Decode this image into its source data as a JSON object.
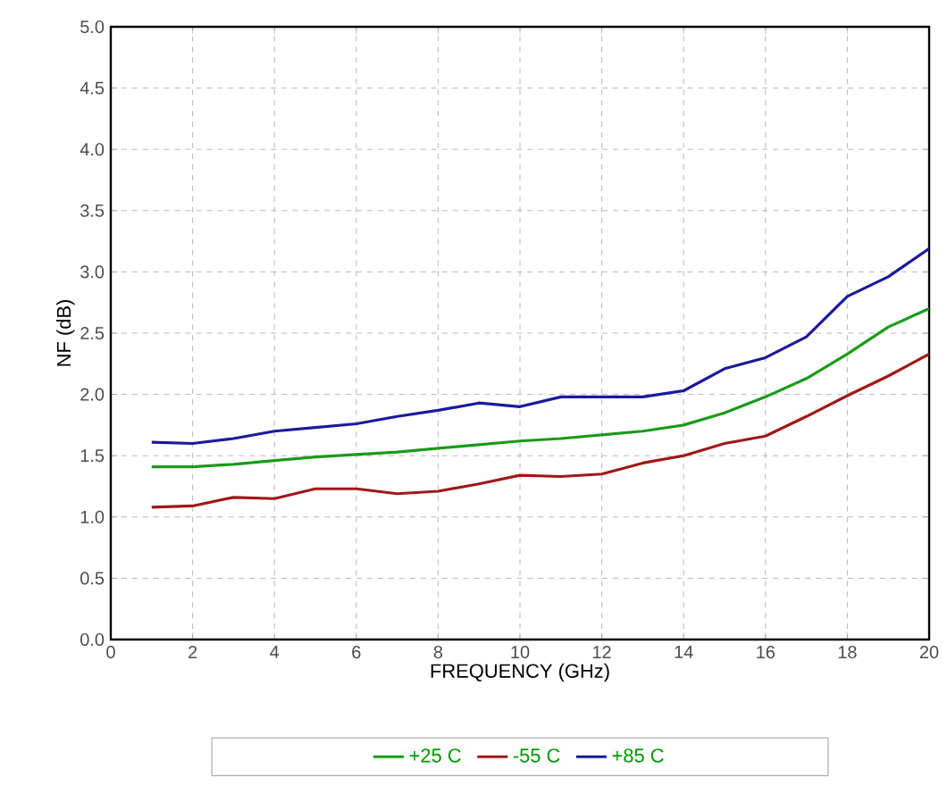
{
  "chart_data": {
    "type": "line",
    "xlabel": "FREQUENCY (GHz)",
    "ylabel": "NF (dB)",
    "x": [
      1,
      2,
      3,
      4,
      5,
      6,
      7,
      8,
      9,
      10,
      11,
      12,
      13,
      14,
      15,
      16,
      17,
      18,
      19,
      20
    ],
    "series": [
      {
        "name": "+25 C",
        "color": "#1a9a1a",
        "values": [
          1.41,
          1.41,
          1.43,
          1.46,
          1.49,
          1.51,
          1.53,
          1.56,
          1.59,
          1.62,
          1.64,
          1.67,
          1.7,
          1.75,
          1.85,
          1.98,
          2.13,
          2.33,
          2.55,
          2.7
        ]
      },
      {
        "name": "-55 C",
        "color": "#a01818",
        "values": [
          1.08,
          1.09,
          1.16,
          1.15,
          1.23,
          1.23,
          1.19,
          1.21,
          1.27,
          1.34,
          1.33,
          1.35,
          1.44,
          1.5,
          1.6,
          1.66,
          1.82,
          1.99,
          2.15,
          2.33
        ]
      },
      {
        "name": "+85 C",
        "color": "#1a1a9a",
        "values": [
          1.61,
          1.6,
          1.64,
          1.7,
          1.73,
          1.76,
          1.82,
          1.87,
          1.93,
          1.9,
          1.98,
          1.98,
          1.98,
          2.03,
          2.21,
          2.3,
          2.47,
          2.8,
          2.96,
          3.19
        ]
      }
    ],
    "xlim": [
      0,
      20
    ],
    "ylim": [
      0,
      5
    ],
    "xticks": [
      0,
      2,
      4,
      6,
      8,
      10,
      12,
      14,
      16,
      18,
      20
    ],
    "yticks": [
      {
        "value": 0,
        "label": "0.0"
      },
      {
        "value": 0.5,
        "label": "0.5"
      },
      {
        "value": 1,
        "label": "1.0"
      },
      {
        "value": 1.5,
        "label": "1.5"
      },
      {
        "value": 2,
        "label": "2.0"
      },
      {
        "value": 2.5,
        "label": "2.5"
      },
      {
        "value": 3,
        "label": "3.0"
      },
      {
        "value": 3.5,
        "label": "3.5"
      },
      {
        "value": 4,
        "label": "4.0"
      },
      {
        "value": 4.5,
        "label": "4.5"
      },
      {
        "value": 5,
        "label": "5.0"
      }
    ],
    "grid": true,
    "legend": "bottom",
    "line_style": "solid",
    "marker": "none"
  }
}
